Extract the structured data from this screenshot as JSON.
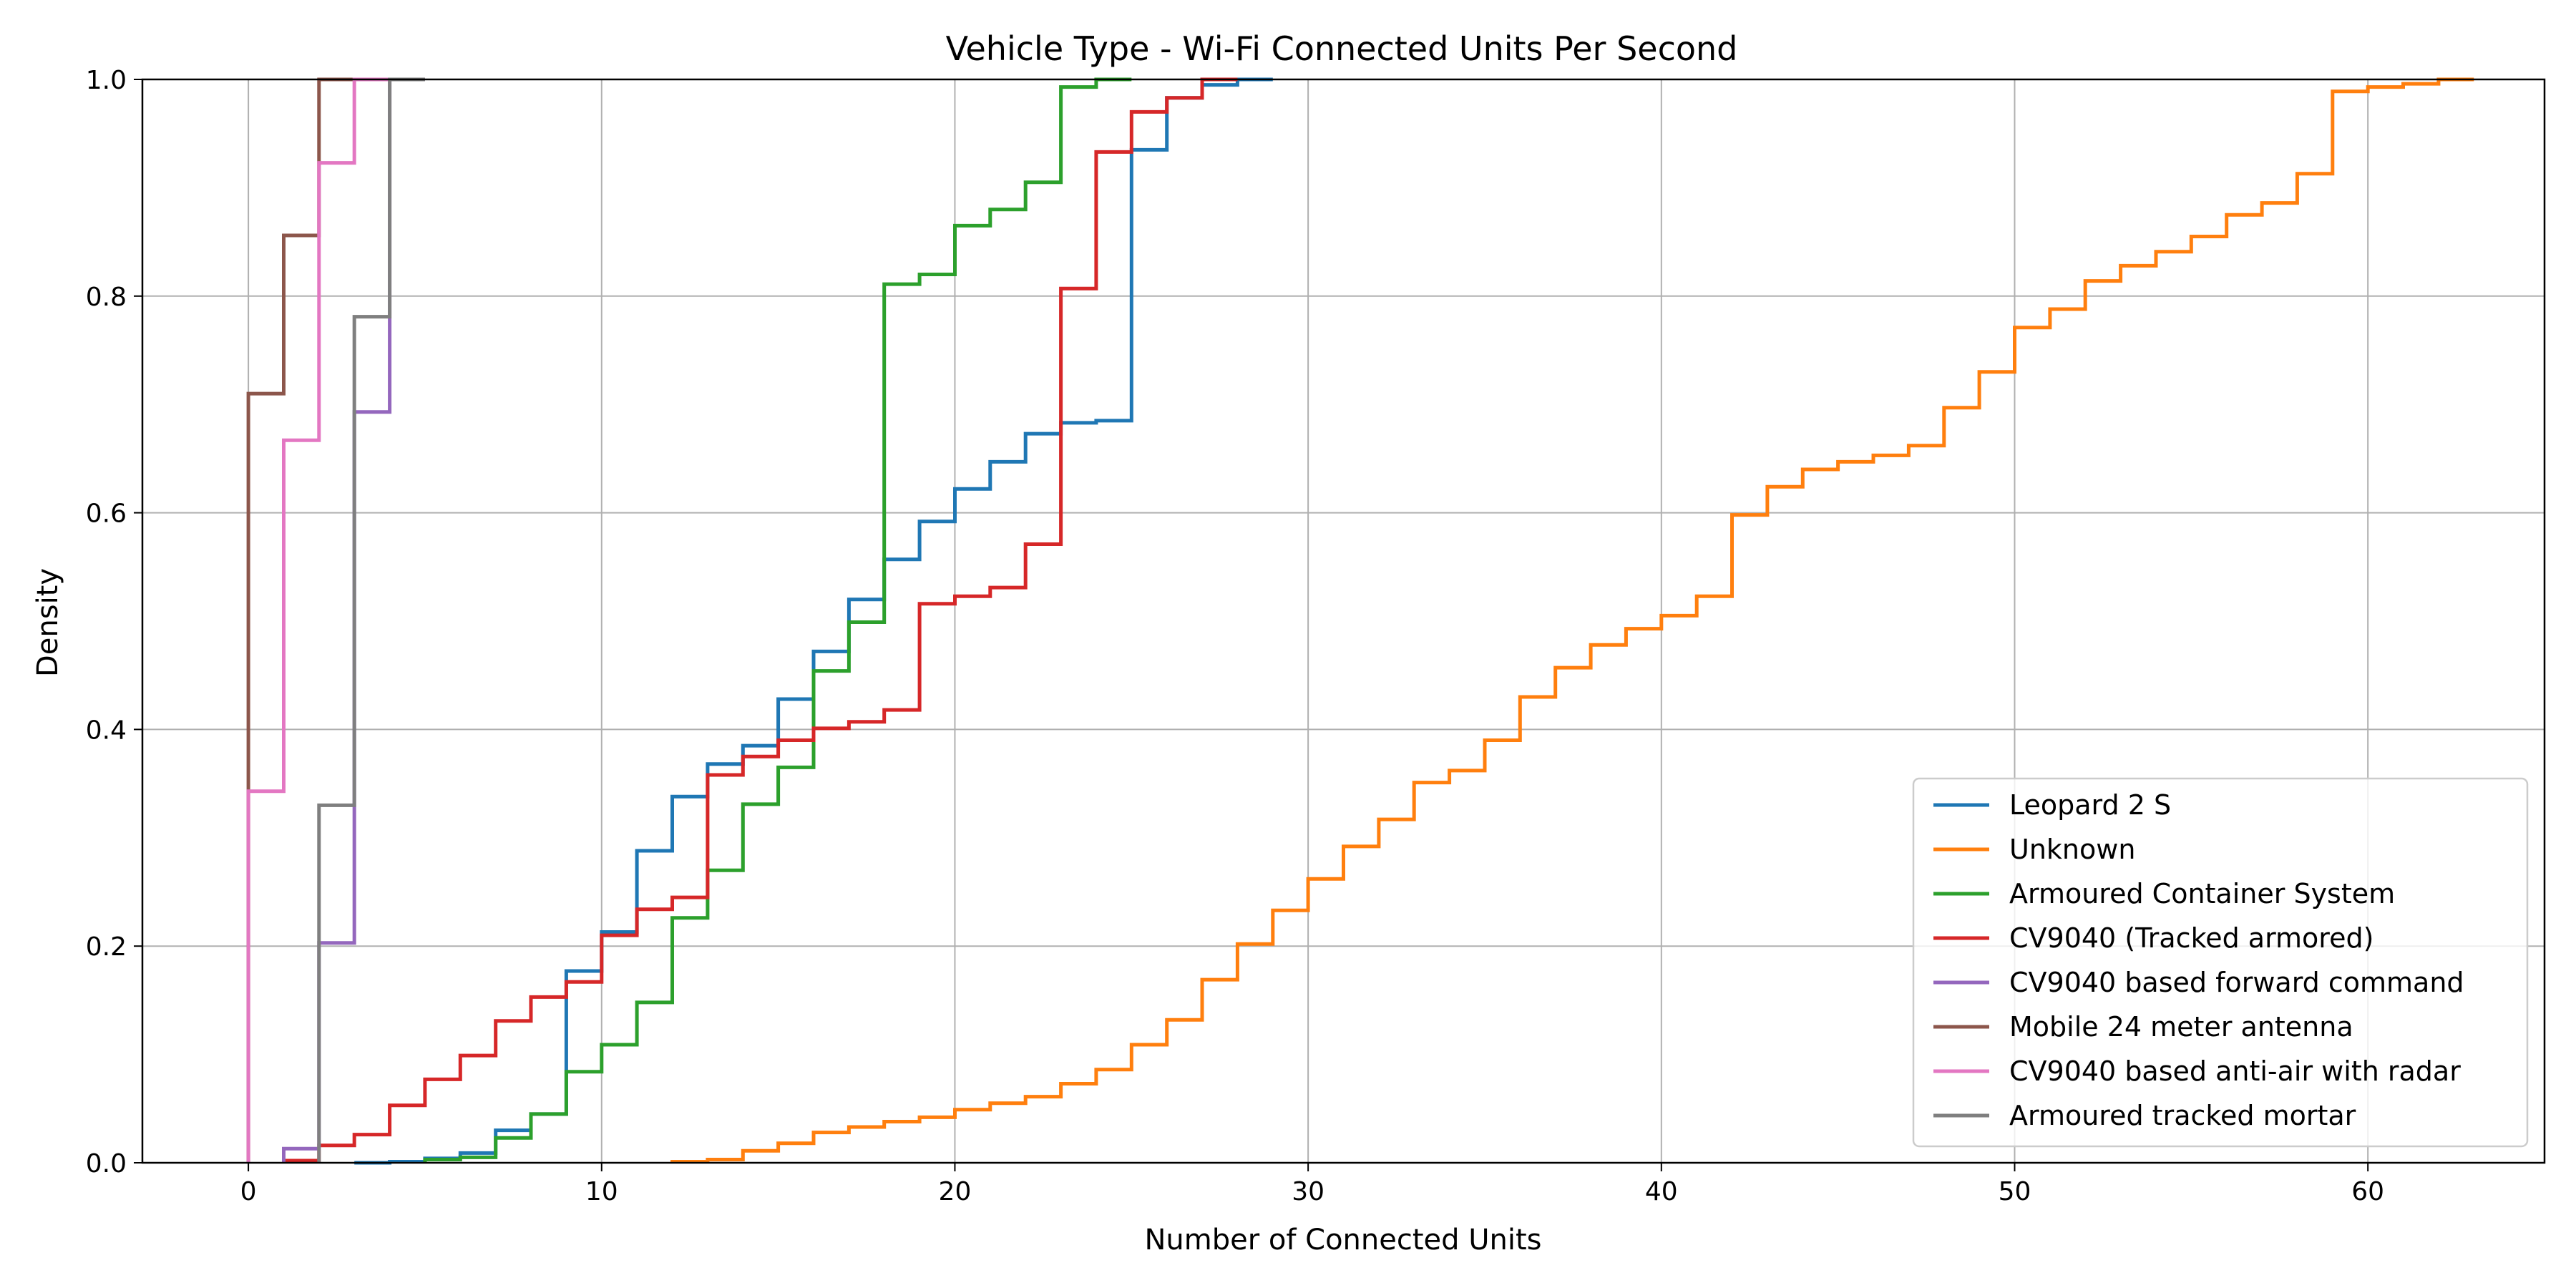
{
  "chart_data": {
    "type": "line",
    "title": "Vehicle Type - Wi-Fi Connected Units Per Second",
    "xlabel": "Number of Connected Units",
    "ylabel": "Density",
    "xlim": [
      -3,
      65
    ],
    "ylim": [
      0,
      1.0
    ],
    "xticks": [
      0,
      10,
      20,
      30,
      40,
      50,
      60
    ],
    "yticks": [
      0.0,
      0.2,
      0.4,
      0.6,
      0.8,
      1.0
    ],
    "xtick_labels": [
      "0",
      "10",
      "20",
      "30",
      "40",
      "50",
      "60"
    ],
    "ytick_labels": [
      "0.0",
      "0.2",
      "0.4",
      "0.6",
      "0.8",
      "1.0"
    ],
    "grid": true,
    "legend_position": "lower-right",
    "series": [
      {
        "name": "Leopard 2 S",
        "color": "#1f77b4",
        "x": [
          3,
          4,
          5,
          6,
          7,
          8,
          9,
          10,
          11,
          12,
          13,
          14,
          15,
          16,
          17,
          18,
          19,
          20,
          21,
          22,
          23,
          24,
          25,
          26,
          27,
          28
        ],
        "y": [
          0.0,
          0.001,
          0.004,
          0.009,
          0.03,
          0.045,
          0.177,
          0.213,
          0.288,
          0.338,
          0.368,
          0.385,
          0.428,
          0.472,
          0.52,
          0.557,
          0.592,
          0.622,
          0.647,
          0.673,
          0.683,
          0.685,
          0.935,
          0.983,
          0.995,
          1.0
        ]
      },
      {
        "name": "Unknown",
        "color": "#ff7f0e",
        "x": [
          12,
          13,
          14,
          15,
          16,
          17,
          18,
          19,
          20,
          21,
          22,
          23,
          24,
          25,
          26,
          27,
          28,
          29,
          30,
          31,
          32,
          33,
          34,
          35,
          36,
          37,
          38,
          39,
          40,
          41,
          42,
          43,
          44,
          45,
          46,
          47,
          48,
          49,
          50,
          51,
          52,
          53,
          54,
          55,
          56,
          57,
          58,
          59,
          60,
          61,
          62
        ],
        "y": [
          0.001,
          0.003,
          0.011,
          0.018,
          0.028,
          0.033,
          0.038,
          0.042,
          0.049,
          0.055,
          0.061,
          0.073,
          0.086,
          0.109,
          0.132,
          0.169,
          0.202,
          0.233,
          0.262,
          0.292,
          0.317,
          0.351,
          0.362,
          0.39,
          0.43,
          0.457,
          0.478,
          0.493,
          0.505,
          0.523,
          0.598,
          0.624,
          0.64,
          0.647,
          0.653,
          0.662,
          0.697,
          0.73,
          0.771,
          0.788,
          0.814,
          0.828,
          0.841,
          0.855,
          0.875,
          0.886,
          0.913,
          0.989,
          0.993,
          0.996,
          1.0
        ]
      },
      {
        "name": "Armoured Container System",
        "color": "#2ca02c",
        "x": [
          5,
          6,
          7,
          8,
          9,
          10,
          11,
          12,
          13,
          14,
          15,
          16,
          17,
          18,
          19,
          20,
          21,
          22,
          23,
          24
        ],
        "y": [
          0.003,
          0.005,
          0.023,
          0.045,
          0.084,
          0.109,
          0.148,
          0.226,
          0.27,
          0.331,
          0.365,
          0.454,
          0.499,
          0.811,
          0.82,
          0.865,
          0.88,
          0.905,
          0.993,
          1.0
        ]
      },
      {
        "name": "CV9040 (Tracked armored)",
        "color": "#d62728",
        "x": [
          1,
          2,
          3,
          4,
          5,
          6,
          7,
          8,
          9,
          10,
          11,
          12,
          13,
          14,
          15,
          16,
          17,
          18,
          19,
          20,
          21,
          22,
          23,
          24,
          25,
          26,
          27
        ],
        "y": [
          0.002,
          0.016,
          0.026,
          0.053,
          0.077,
          0.099,
          0.131,
          0.153,
          0.167,
          0.21,
          0.234,
          0.245,
          0.358,
          0.375,
          0.39,
          0.401,
          0.407,
          0.418,
          0.516,
          0.523,
          0.531,
          0.571,
          0.807,
          0.933,
          0.97,
          0.983,
          1.0
        ]
      },
      {
        "name": "CV9040 based forward command",
        "color": "#9467bd",
        "x": [
          1,
          2,
          3,
          4
        ],
        "y": [
          0.013,
          0.203,
          0.693,
          1.0
        ]
      },
      {
        "name": "Mobile 24 meter antenna",
        "color": "#8c564b",
        "x": [
          0,
          1,
          2
        ],
        "y": [
          0.71,
          0.856,
          1.0
        ]
      },
      {
        "name": "CV9040 based anti-air with radar",
        "color": "#e377c2",
        "x": [
          0,
          1,
          2,
          3
        ],
        "y": [
          0.343,
          0.667,
          0.923,
          1.0
        ]
      },
      {
        "name": "Armoured tracked mortar",
        "color": "#7f7f7f",
        "x": [
          2,
          3,
          4
        ],
        "y": [
          0.33,
          0.781,
          1.0
        ]
      }
    ]
  }
}
